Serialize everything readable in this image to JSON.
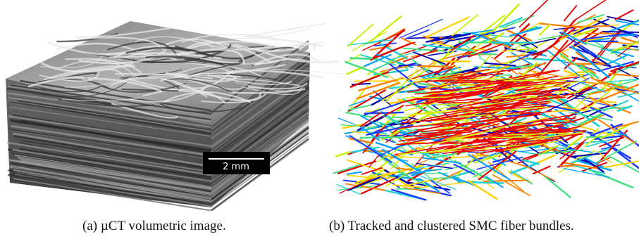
{
  "figure": {
    "panel_a": {
      "scale_bar_label": "2 mm",
      "caption": "(a) µCT volumetric image."
    },
    "panel_b": {
      "caption": "(b) Tracked and clustered SMC fiber bundles."
    }
  }
}
